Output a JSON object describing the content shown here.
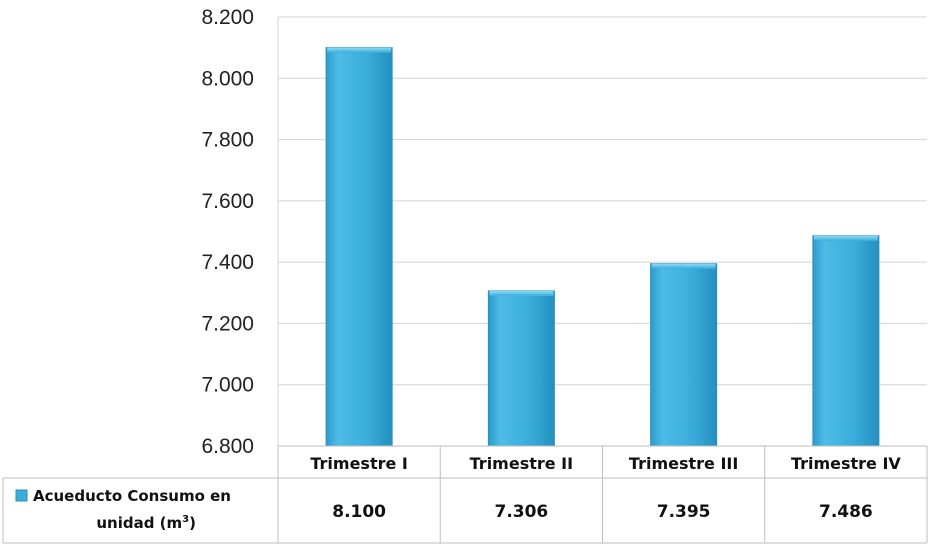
{
  "chart_data": {
    "type": "bar",
    "title": "",
    "xlabel": "",
    "ylabel": "",
    "categories": [
      "Trimestre I",
      "Trimestre II",
      "Trimestre III",
      "Trimestre IV"
    ],
    "series": [
      {
        "name": "Acueducto Consumo en unidad (m³)",
        "legend_line1": "Acueducto Consumo en",
        "legend_line2_main": "unidad (m",
        "legend_line2_sup": "3",
        "legend_line2_end": ")",
        "values": [
          8100,
          7306,
          7395,
          7486
        ],
        "value_labels": [
          "8.100",
          "7.306",
          "7.395",
          "7.486"
        ],
        "color": "#3BAEDB"
      }
    ],
    "ylim": [
      6800,
      8200
    ],
    "yticks": [
      6800,
      7000,
      7200,
      7400,
      7600,
      7800,
      8000,
      8200
    ],
    "ytick_labels": [
      "6.800",
      "7.000",
      "7.200",
      "7.400",
      "7.600",
      "7.800",
      "8.000",
      "8.200"
    ],
    "grid": true,
    "data_table": true
  }
}
